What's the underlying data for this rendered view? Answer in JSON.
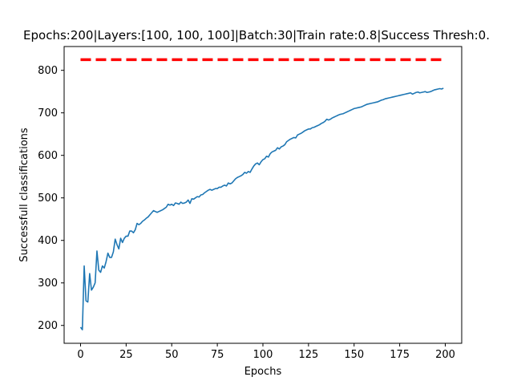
{
  "chart_data": {
    "type": "line",
    "title": "Epochs:200|Layers:[100, 100, 100]|Batch:30|Train rate:0.8|Success Thresh:0.",
    "xlabel": "Epochs",
    "ylabel": "Successfull classifications",
    "xlim": [
      -9,
      209
    ],
    "ylim": [
      158,
      856
    ],
    "xticks": [
      0,
      25,
      50,
      75,
      100,
      125,
      150,
      175,
      200
    ],
    "yticks": [
      200,
      300,
      400,
      500,
      600,
      700,
      800
    ],
    "grid": false,
    "legend": "none",
    "series": [
      {
        "color": "#1f77b4",
        "style": "solid",
        "x_start": 0,
        "x_step": 1,
        "values": [
          196,
          190,
          340,
          258,
          255,
          322,
          283,
          290,
          300,
          375,
          330,
          325,
          340,
          335,
          350,
          370,
          360,
          360,
          373,
          403,
          390,
          380,
          405,
          395,
          405,
          410,
          410,
          422,
          422,
          418,
          425,
          440,
          437,
          440,
          445,
          448,
          452,
          455,
          460,
          465,
          470,
          468,
          466,
          468,
          470,
          472,
          475,
          478,
          485,
          483,
          485,
          482,
          488,
          487,
          485,
          490,
          487,
          488,
          490,
          495,
          487,
          498,
          497,
          500,
          503,
          502,
          507,
          508,
          512,
          515,
          518,
          520,
          518,
          520,
          522,
          522,
          525,
          525,
          528,
          530,
          528,
          535,
          533,
          535,
          540,
          545,
          548,
          550,
          552,
          555,
          560,
          558,
          562,
          560,
          568,
          575,
          580,
          582,
          578,
          585,
          590,
          592,
          598,
          596,
          604,
          608,
          610,
          612,
          618,
          615,
          620,
          622,
          625,
          632,
          635,
          638,
          640,
          642,
          641,
          648,
          650,
          652,
          655,
          658,
          660,
          662,
          662,
          665,
          666,
          668,
          670,
          672,
          675,
          677,
          680,
          685,
          683,
          685,
          688,
          690,
          692,
          694,
          696,
          697,
          698,
          700,
          702,
          704,
          706,
          708,
          710,
          711,
          712,
          713,
          714,
          716,
          718,
          720,
          721,
          722,
          723,
          724,
          725,
          726,
          728,
          730,
          731,
          733,
          734,
          735,
          736,
          737,
          738,
          739,
          740,
          741,
          742,
          743,
          744,
          745,
          746,
          747,
          744,
          746,
          748,
          749,
          747,
          748,
          749,
          750,
          748,
          749,
          750,
          752,
          754,
          755,
          756,
          757,
          756,
          758
        ]
      },
      {
        "color": "#ff0000",
        "style": "dashed",
        "x": [
          0,
          199
        ],
        "values": [
          825,
          825
        ]
      }
    ]
  }
}
